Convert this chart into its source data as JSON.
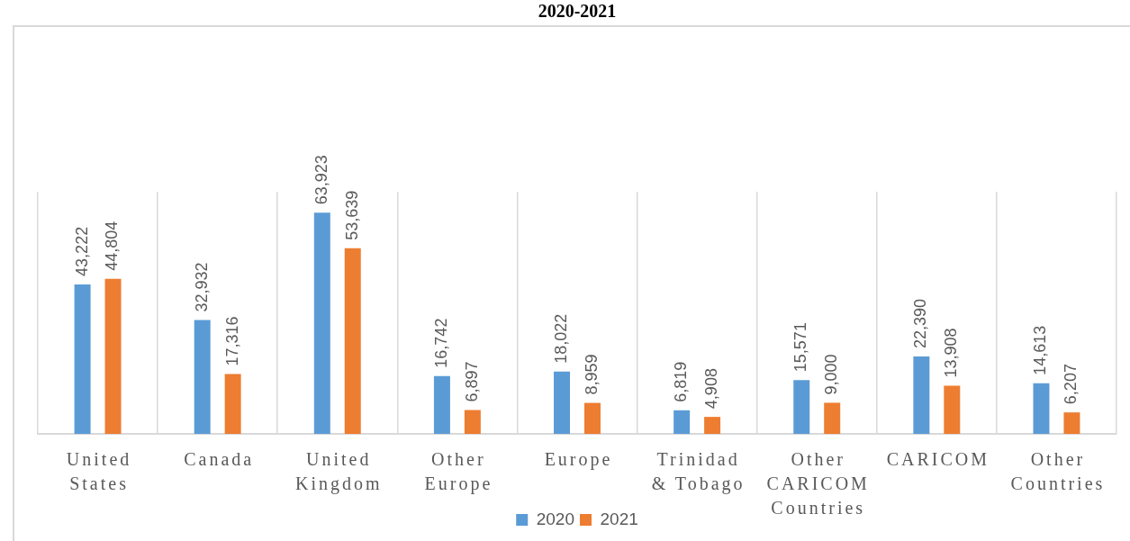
{
  "chart_data": {
    "type": "bar",
    "title": "2020-2021",
    "categories": [
      "United States",
      "Canada",
      "United Kingdom",
      "Other Europe",
      "Europe",
      "Trinidad & Tobago",
      "Other CARICOM Countries",
      "CARICOM",
      "Other Countries"
    ],
    "series": [
      {
        "name": "2020",
        "color": "#5b9bd5",
        "values": [
          43222,
          32932,
          63923,
          16742,
          18022,
          6819,
          15571,
          22390,
          14613
        ],
        "value_labels": [
          "43,222",
          "32,932",
          "63,923",
          "16,742",
          "18,022",
          "6,819",
          "15,571",
          "22,390",
          "14,613"
        ]
      },
      {
        "name": "2021",
        "color": "#ed7d31",
        "values": [
          44804,
          17316,
          53639,
          6897,
          8959,
          4908,
          9000,
          13908,
          6207
        ],
        "value_labels": [
          "44,804",
          "17,316",
          "53,639",
          "6,897",
          "8,959",
          "4,908",
          "9,000",
          "13,908",
          "6,207"
        ]
      }
    ],
    "tick_labels": "x",
    "grid": "x",
    "legend": "bottom"
  }
}
